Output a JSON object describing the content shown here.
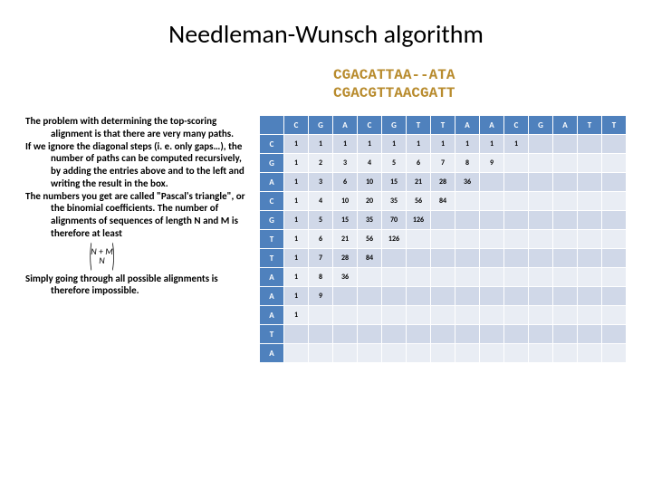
{
  "title": "Needleman-Wunsch algorithm",
  "sequences": {
    "line1": "CGACATTAA--ATA",
    "line2": "CGACGTTAACGATT"
  },
  "description": {
    "p1": "The problem with determining the top-scoring alignment is that there are very many paths.",
    "p2": "If we ignore the diagonal steps (i. e. only gaps…), the number of paths can be computed recursively, by adding the entries above and to the left and writing the result in the box.",
    "p3": "The numbers you get are called \"Pascal's triangle\", or the binomial coefficients. The number of alignments of sequences of length N and M is therefore at least",
    "p4": "Simply going through all possible alignments is therefore impossible."
  },
  "formula": {
    "top": "N + M",
    "bottom": "N"
  },
  "matrix": {
    "colors": {
      "header_bg": "#4f81bd",
      "header_fg": "#ffffff",
      "row_even_bg": "#e9edf4",
      "row_odd_bg": "#d0d8e8",
      "text": "#000000"
    },
    "col_headers": [
      "",
      "C",
      "G",
      "A",
      "C",
      "G",
      "T",
      "T",
      "A",
      "A",
      "C",
      "G",
      "A",
      "T",
      "T"
    ],
    "row_headers": [
      "C",
      "G",
      "A",
      "C",
      "G",
      "T",
      "T",
      "A",
      "A",
      "A",
      "T",
      "A"
    ],
    "rows": [
      [
        1,
        1,
        1,
        1,
        1,
        1,
        1,
        1,
        1,
        1,
        "",
        "",
        "",
        ""
      ],
      [
        1,
        2,
        3,
        4,
        5,
        6,
        7,
        8,
        9,
        "",
        "",
        "",
        "",
        ""
      ],
      [
        1,
        3,
        6,
        10,
        15,
        21,
        28,
        36,
        "",
        "",
        "",
        "",
        "",
        ""
      ],
      [
        1,
        4,
        10,
        20,
        35,
        56,
        84,
        "",
        "",
        "",
        "",
        "",
        "",
        ""
      ],
      [
        1,
        5,
        15,
        35,
        70,
        126,
        "",
        "",
        "",
        "",
        "",
        "",
        "",
        ""
      ],
      [
        1,
        6,
        21,
        56,
        126,
        "",
        "",
        "",
        "",
        "",
        "",
        "",
        "",
        ""
      ],
      [
        1,
        7,
        28,
        84,
        "",
        "",
        "",
        "",
        "",
        "",
        "",
        "",
        "",
        ""
      ],
      [
        1,
        8,
        36,
        "",
        "",
        "",
        "",
        "",
        "",
        "",
        "",
        "",
        "",
        ""
      ],
      [
        1,
        9,
        "",
        "",
        "",
        "",
        "",
        "",
        "",
        "",
        "",
        "",
        "",
        ""
      ],
      [
        1,
        "",
        "",
        "",
        "",
        "",
        "",
        "",
        "",
        "",
        "",
        "",
        "",
        ""
      ],
      [
        "",
        "",
        "",
        "",
        "",
        "",
        "",
        "",
        "",
        "",
        "",
        "",
        "",
        ""
      ],
      [
        "",
        "",
        "",
        "",
        "",
        "",
        "",
        "",
        "",
        "",
        "",
        "",
        "",
        ""
      ]
    ]
  }
}
